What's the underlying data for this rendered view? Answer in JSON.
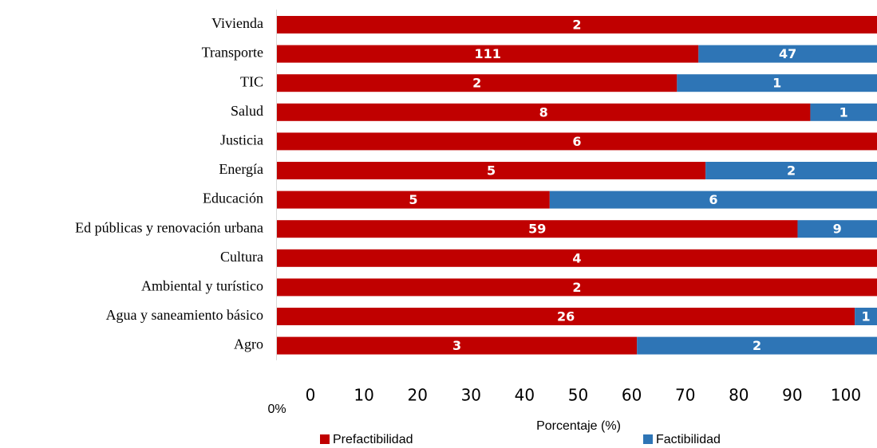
{
  "chart_data": {
    "type": "bar",
    "orientation": "horizontal",
    "stacked": "percent",
    "categories": [
      "Vivienda",
      "Transporte",
      "TIC",
      "Salud",
      "Justicia",
      "Energía",
      "Educación",
      "Ed públicas y renovación urbana",
      "Cultura",
      "Ambiental y turístico",
      "Agua y saneamiento básico",
      "Agro"
    ],
    "series": [
      {
        "name": "Prefactibilidad",
        "color": "#c00000",
        "values": [
          2,
          111,
          2,
          8,
          6,
          5,
          5,
          59,
          4,
          2,
          26,
          3
        ]
      },
      {
        "name": "Factibilidad",
        "color": "#2e75b6",
        "values": [
          null,
          47,
          1,
          1,
          null,
          2,
          6,
          9,
          null,
          null,
          1,
          2
        ]
      }
    ],
    "xlim": [
      0,
      100
    ],
    "xticks": [
      {
        "value": 0,
        "label": "0%"
      },
      0,
      10,
      20,
      30,
      40,
      50,
      60,
      70,
      80,
      90,
      100
    ],
    "xlabel": "Porcentaje (%)",
    "legend": "bottom"
  }
}
